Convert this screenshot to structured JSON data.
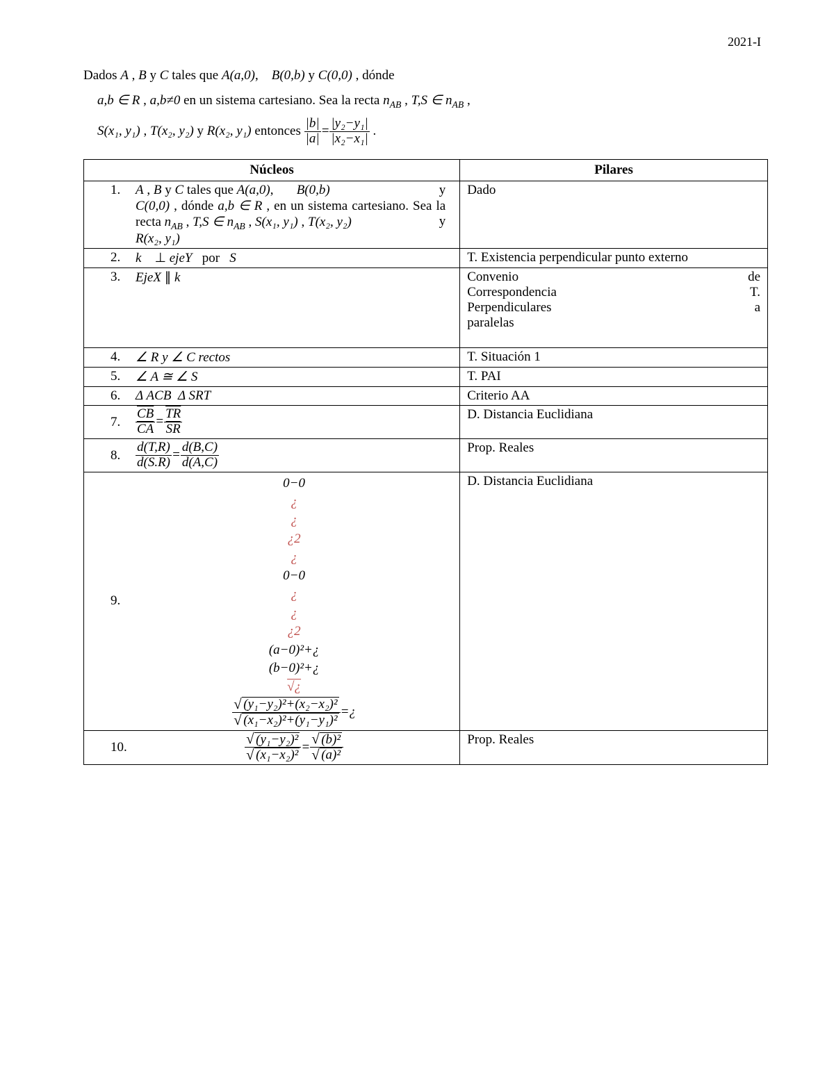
{
  "page_number": "2021-I",
  "intro": {
    "l1a": "Dados ",
    "l1b": " , ",
    "l1c": " y ",
    "l1d": " tales que ",
    "l1e": " , dónde",
    "l2a": " , ",
    "l2b": " en un sistema cartesiano. Sea la recta ",
    "l2c": " , ",
    "l2d": " ,",
    "l3a": " , ",
    "l3b": " y ",
    "l3c": " entonces ",
    "l3d": " ."
  },
  "headers": {
    "nucleos": "Núcleos",
    "pilares": "Pilares"
  },
  "rows": [
    {
      "n": "1.",
      "body_pre": " , ",
      "body_mid1": " y ",
      "body_mid2": " tales que ",
      "body_mid3": " y ",
      "body_mid4": " , dónde ",
      "body_mid5": " , en un sistema cartesiano. Sea la recta ",
      "body_mid6": " , ",
      "body_mid7": " , ",
      "body_mid8": " y ",
      "pilar": "Dado"
    },
    {
      "n": "2.",
      "pilar": "T. Existencia perpendicular punto externo"
    },
    {
      "n": "3.",
      "pilar_l1a": "Convenio",
      "pilar_l1b": "de",
      "pilar_l2a": "Correspondencia",
      "pilar_l2b": "T.",
      "pilar_l3a": "Perpendiculares",
      "pilar_l3b": "a",
      "pilar_l4": "paralelas"
    },
    {
      "n": "4.",
      "pilar": "T. Situación 1"
    },
    {
      "n": "5.",
      "pilar": "T. PAI"
    },
    {
      "n": "6.",
      "pilar": "Criterio AA"
    },
    {
      "n": "7.",
      "pilar": "D. Distancia Euclidiana"
    },
    {
      "n": "8.",
      "pilar": "Prop. Reales"
    },
    {
      "n": "9.",
      "pilar": "D. Distancia Euclidiana"
    },
    {
      "n": "10.",
      "pilar": "Prop. Reales"
    }
  ],
  "math": {
    "A": "A",
    "B": "B",
    "C": "C",
    "R": "R",
    "S": "S",
    "T": "T",
    "k": "k",
    "a": "a",
    "b": "b",
    "Aa0": "A(a,0)",
    "B0b": "B(0,b)",
    "C00": "C(0,0)",
    "abinR": "a,b ∈ R",
    "abneq0": "a,b≠0",
    "nAB": "n",
    "TSin": "T,S ∈ n",
    "Sxy": "S(x₁, y₁)",
    "Txy": "T(x₂, y₂)",
    "Rxy": "R(x₂, y₁)",
    "perp": "⊥",
    "ejeY": "ejeY",
    "por": "por",
    "EjeX": "EjeX",
    "parallel": "∥",
    "angRyC": "∠ R y ∠ C rectos",
    "angAS": "∠ A ≅ ∠ S",
    "triACB": "Δ ACB",
    "triSRT": "Δ SRT",
    "CB": "CB",
    "CA": "CA",
    "TR": "TR",
    "SR": "SR",
    "dTR": "d(T,R)",
    "dSR": "d(S.R)",
    "dBC": "d(B,C)",
    "dAC": "d(A,C)",
    "eq": "=",
    "dot": ".",
    "zmz": "0−0",
    "i": "¿",
    "i2": "¿2",
    "am0": "(a−0)²+¿",
    "bm0": "(b−0)²+¿",
    "sqz": "√¿",
    "big_num": "(y₁−y₂)²+(x₂−x₂)²",
    "big_den": "(x₁−x₂)²+(y₁−y₁)²",
    "eqi": "=¿",
    "s10num": "(y₁−y₂)²",
    "s10den": "(x₁−x₂)²",
    "s10rn": "(b)²",
    "s10rd": "(a)²",
    "absb": "|b|",
    "absa": "|a|",
    "y2y1": "|y₂−y₁|",
    "x2x1": "|x₂−x₁|",
    "AB_sub": "AB"
  }
}
